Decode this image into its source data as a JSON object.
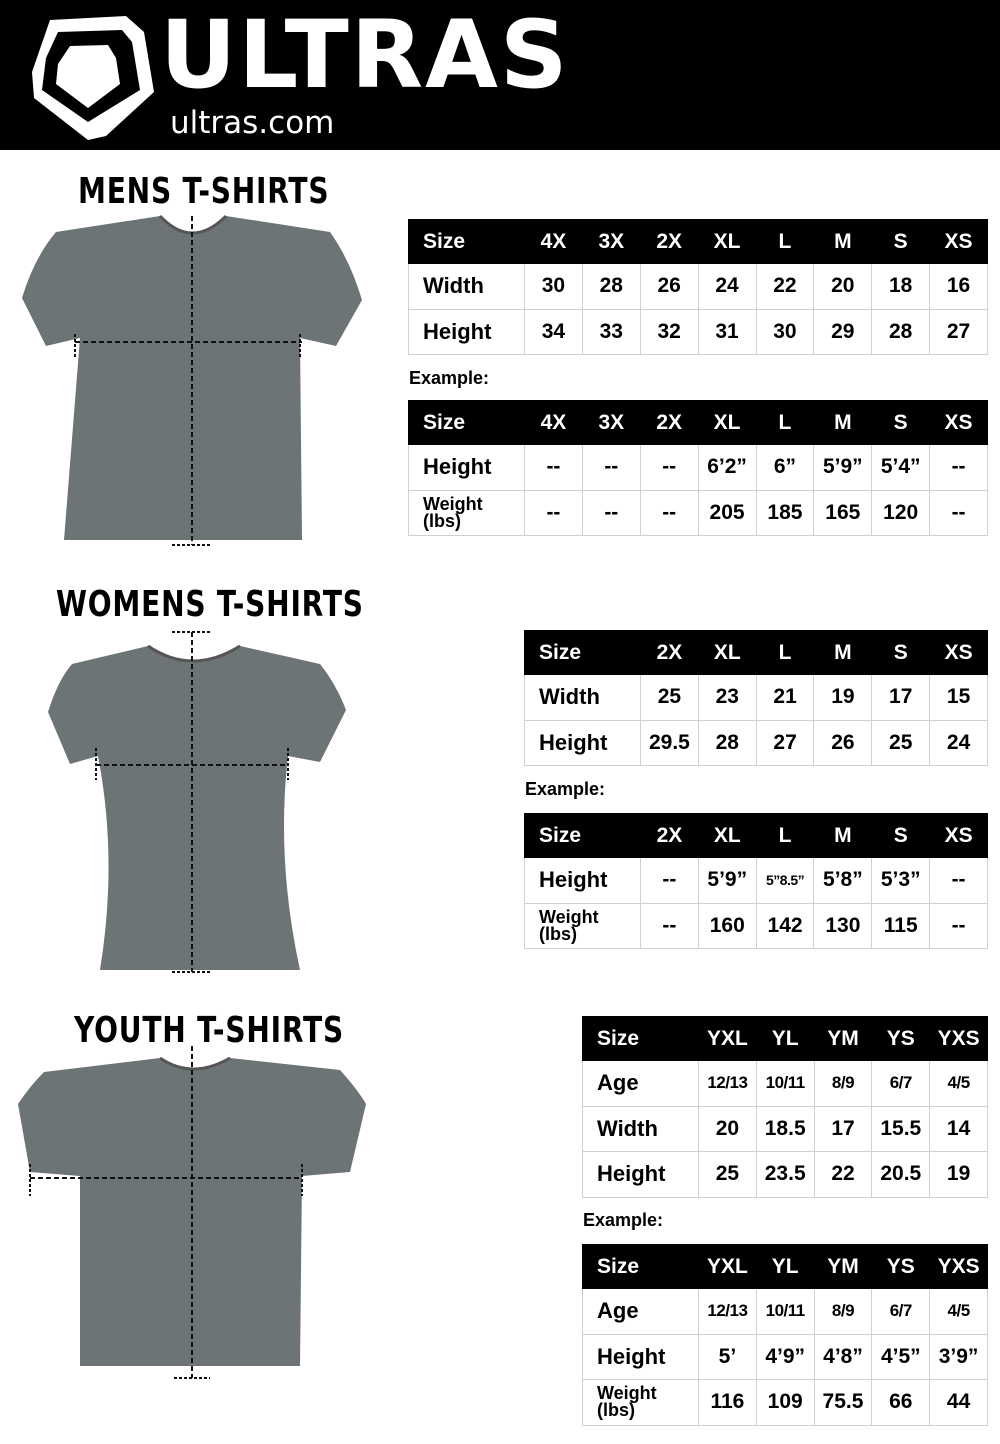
{
  "header": {
    "brand": "ULTRAS",
    "site": "ultras.com",
    "logo_icon": "shield-pentagon-logo",
    "background": "#000000"
  },
  "example_label": "Example:",
  "sections": {
    "mens": {
      "title": "MENS T-SHIRTS",
      "measure": {
        "header": [
          "Size",
          "4X",
          "3X",
          "2X",
          "XL",
          "L",
          "M",
          "S",
          "XS"
        ],
        "rows": [
          [
            "Width",
            "30",
            "28",
            "26",
            "24",
            "22",
            "20",
            "18",
            "16"
          ],
          [
            "Height",
            "34",
            "33",
            "32",
            "31",
            "30",
            "29",
            "28",
            "27"
          ]
        ]
      },
      "example": {
        "header": [
          "Size",
          "4X",
          "3X",
          "2X",
          "XL",
          "L",
          "M",
          "S",
          "XS"
        ],
        "rows": [
          [
            "Height",
            "--",
            "--",
            "--",
            "6’2”",
            "6”",
            "5’9”",
            "5’4”",
            "--"
          ],
          [
            "Weight (lbs)",
            "--",
            "--",
            "--",
            "205",
            "185",
            "165",
            "120",
            "--"
          ]
        ]
      }
    },
    "womens": {
      "title": "WOMENS T-SHIRTS",
      "measure": {
        "header": [
          "Size",
          "2X",
          "XL",
          "L",
          "M",
          "S",
          "XS"
        ],
        "rows": [
          [
            "Width",
            "25",
            "23",
            "21",
            "19",
            "17",
            "15"
          ],
          [
            "Height",
            "29.5",
            "28",
            "27",
            "26",
            "25",
            "24"
          ]
        ]
      },
      "example": {
        "header": [
          "Size",
          "2X",
          "XL",
          "L",
          "M",
          "S",
          "XS"
        ],
        "rows": [
          [
            "Height",
            "--",
            "5’9”",
            "5”8.5”",
            "5’8”",
            "5’3”",
            "--"
          ],
          [
            "Weight (lbs)",
            "--",
            "160",
            "142",
            "130",
            "115",
            "--"
          ]
        ]
      }
    },
    "youth": {
      "title": "YOUTH T-SHIRTS",
      "measure": {
        "header": [
          "Size",
          "YXL",
          "YL",
          "YM",
          "YS",
          "YXS"
        ],
        "rows": [
          [
            "Age",
            "12/13",
            "10/11",
            "8/9",
            "6/7",
            "4/5"
          ],
          [
            "Width",
            "20",
            "18.5",
            "17",
            "15.5",
            "14"
          ],
          [
            "Height",
            "25",
            "23.5",
            "22",
            "20.5",
            "19"
          ]
        ]
      },
      "example": {
        "header": [
          "Size",
          "YXL",
          "YL",
          "YM",
          "YS",
          "YXS"
        ],
        "rows": [
          [
            "Age",
            "12/13",
            "10/11",
            "8/9",
            "6/7",
            "4/5"
          ],
          [
            "Height",
            "5’",
            "4’9”",
            "4’8”",
            "4’5”",
            "3’9”"
          ],
          [
            "Weight (lbs)",
            "116",
            "109",
            "75.5",
            "66",
            "44"
          ]
        ]
      }
    }
  },
  "colors": {
    "shirt": "#6d7476",
    "table_header": "#000000",
    "grid": "#d0d0d0"
  }
}
